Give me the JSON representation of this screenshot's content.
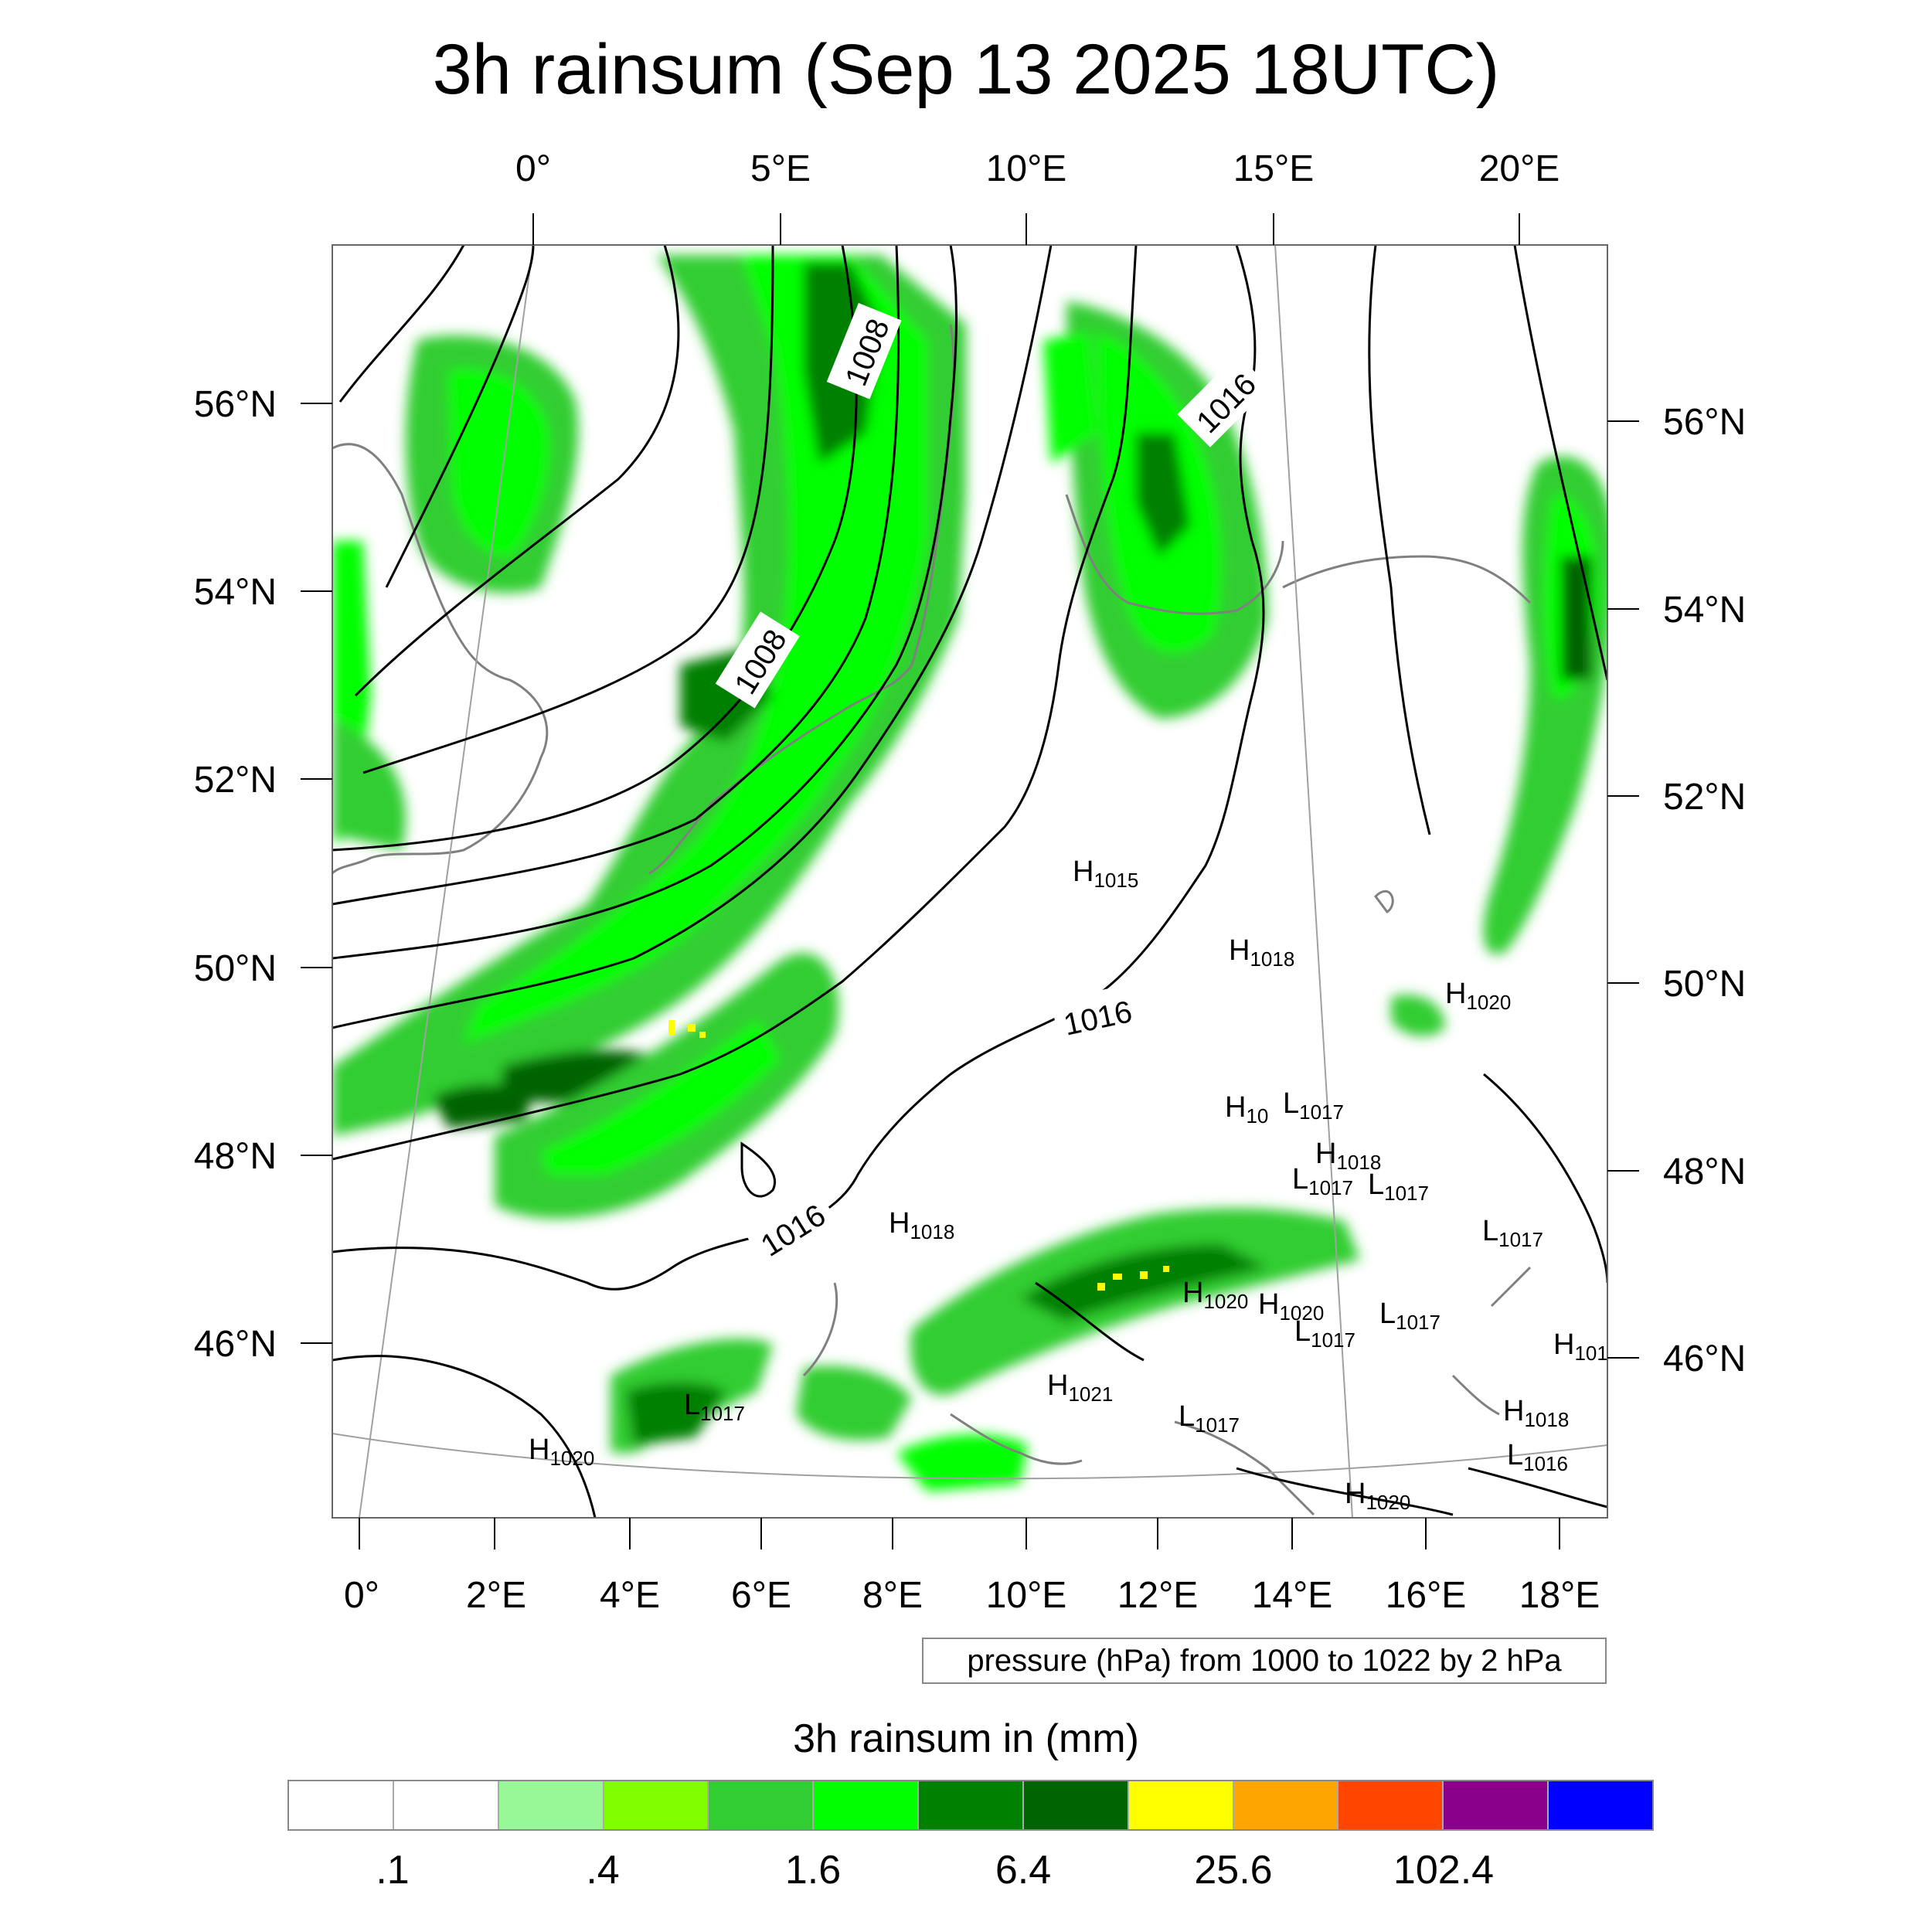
{
  "title": "3h rainsum (Sep 13 2025 18UTC)",
  "axes": {
    "top_lon": [
      "0°",
      "5°E",
      "10°E",
      "15°E",
      "20°E"
    ],
    "bottom_lon": [
      "0°",
      "2°E",
      "4°E",
      "6°E",
      "8°E",
      "10°E",
      "12°E",
      "14°E",
      "16°E",
      "18°E"
    ],
    "left_lat": [
      "56°N",
      "54°N",
      "52°N",
      "50°N",
      "48°N",
      "46°N"
    ],
    "right_lat": [
      "56°N",
      "54°N",
      "52°N",
      "50°N",
      "48°N",
      "46°N"
    ]
  },
  "contour_labels": [
    "1008",
    "1008",
    "1016",
    "1016",
    "1016"
  ],
  "pressure_centers": [
    {
      "letter": "H",
      "value": "1015"
    },
    {
      "letter": "H",
      "value": "1018"
    },
    {
      "letter": "H",
      "value": "1020"
    },
    {
      "letter": "H",
      "value": "10"
    },
    {
      "letter": "L",
      "value": "1017"
    },
    {
      "letter": "H",
      "value": "1018"
    },
    {
      "letter": "L",
      "value": "1017"
    },
    {
      "letter": "L",
      "value": "1017"
    },
    {
      "letter": "H",
      "value": "1018"
    },
    {
      "letter": "L",
      "value": "1017"
    },
    {
      "letter": "H",
      "value": "1020"
    },
    {
      "letter": "H",
      "value": "1020"
    },
    {
      "letter": "L",
      "value": "1017"
    },
    {
      "letter": "L",
      "value": "1017"
    },
    {
      "letter": "H",
      "value": "101"
    },
    {
      "letter": "L",
      "value": "1017"
    },
    {
      "letter": "H",
      "value": "1021"
    },
    {
      "letter": "L",
      "value": "1017"
    },
    {
      "letter": "H",
      "value": "1018"
    },
    {
      "letter": "L",
      "value": "1016"
    },
    {
      "letter": "H",
      "value": "1020"
    },
    {
      "letter": "H",
      "value": "1020"
    }
  ],
  "pressure_note": "pressure (hPa) from 1000 to 1022 by 2 hPa",
  "legend": {
    "title": "3h rainsum in (mm)",
    "colors": [
      "#ffffff",
      "#ffffff",
      "#98f898",
      "#80ff00",
      "#32cd32",
      "#00ff00",
      "#008000",
      "#006400",
      "#ffff00",
      "#ffa500",
      "#ff4500",
      "#8b008b",
      "#0000ff"
    ],
    "labels": [
      ".1",
      ".4",
      "1.6",
      "6.4",
      "25.6",
      "102.4"
    ]
  }
}
